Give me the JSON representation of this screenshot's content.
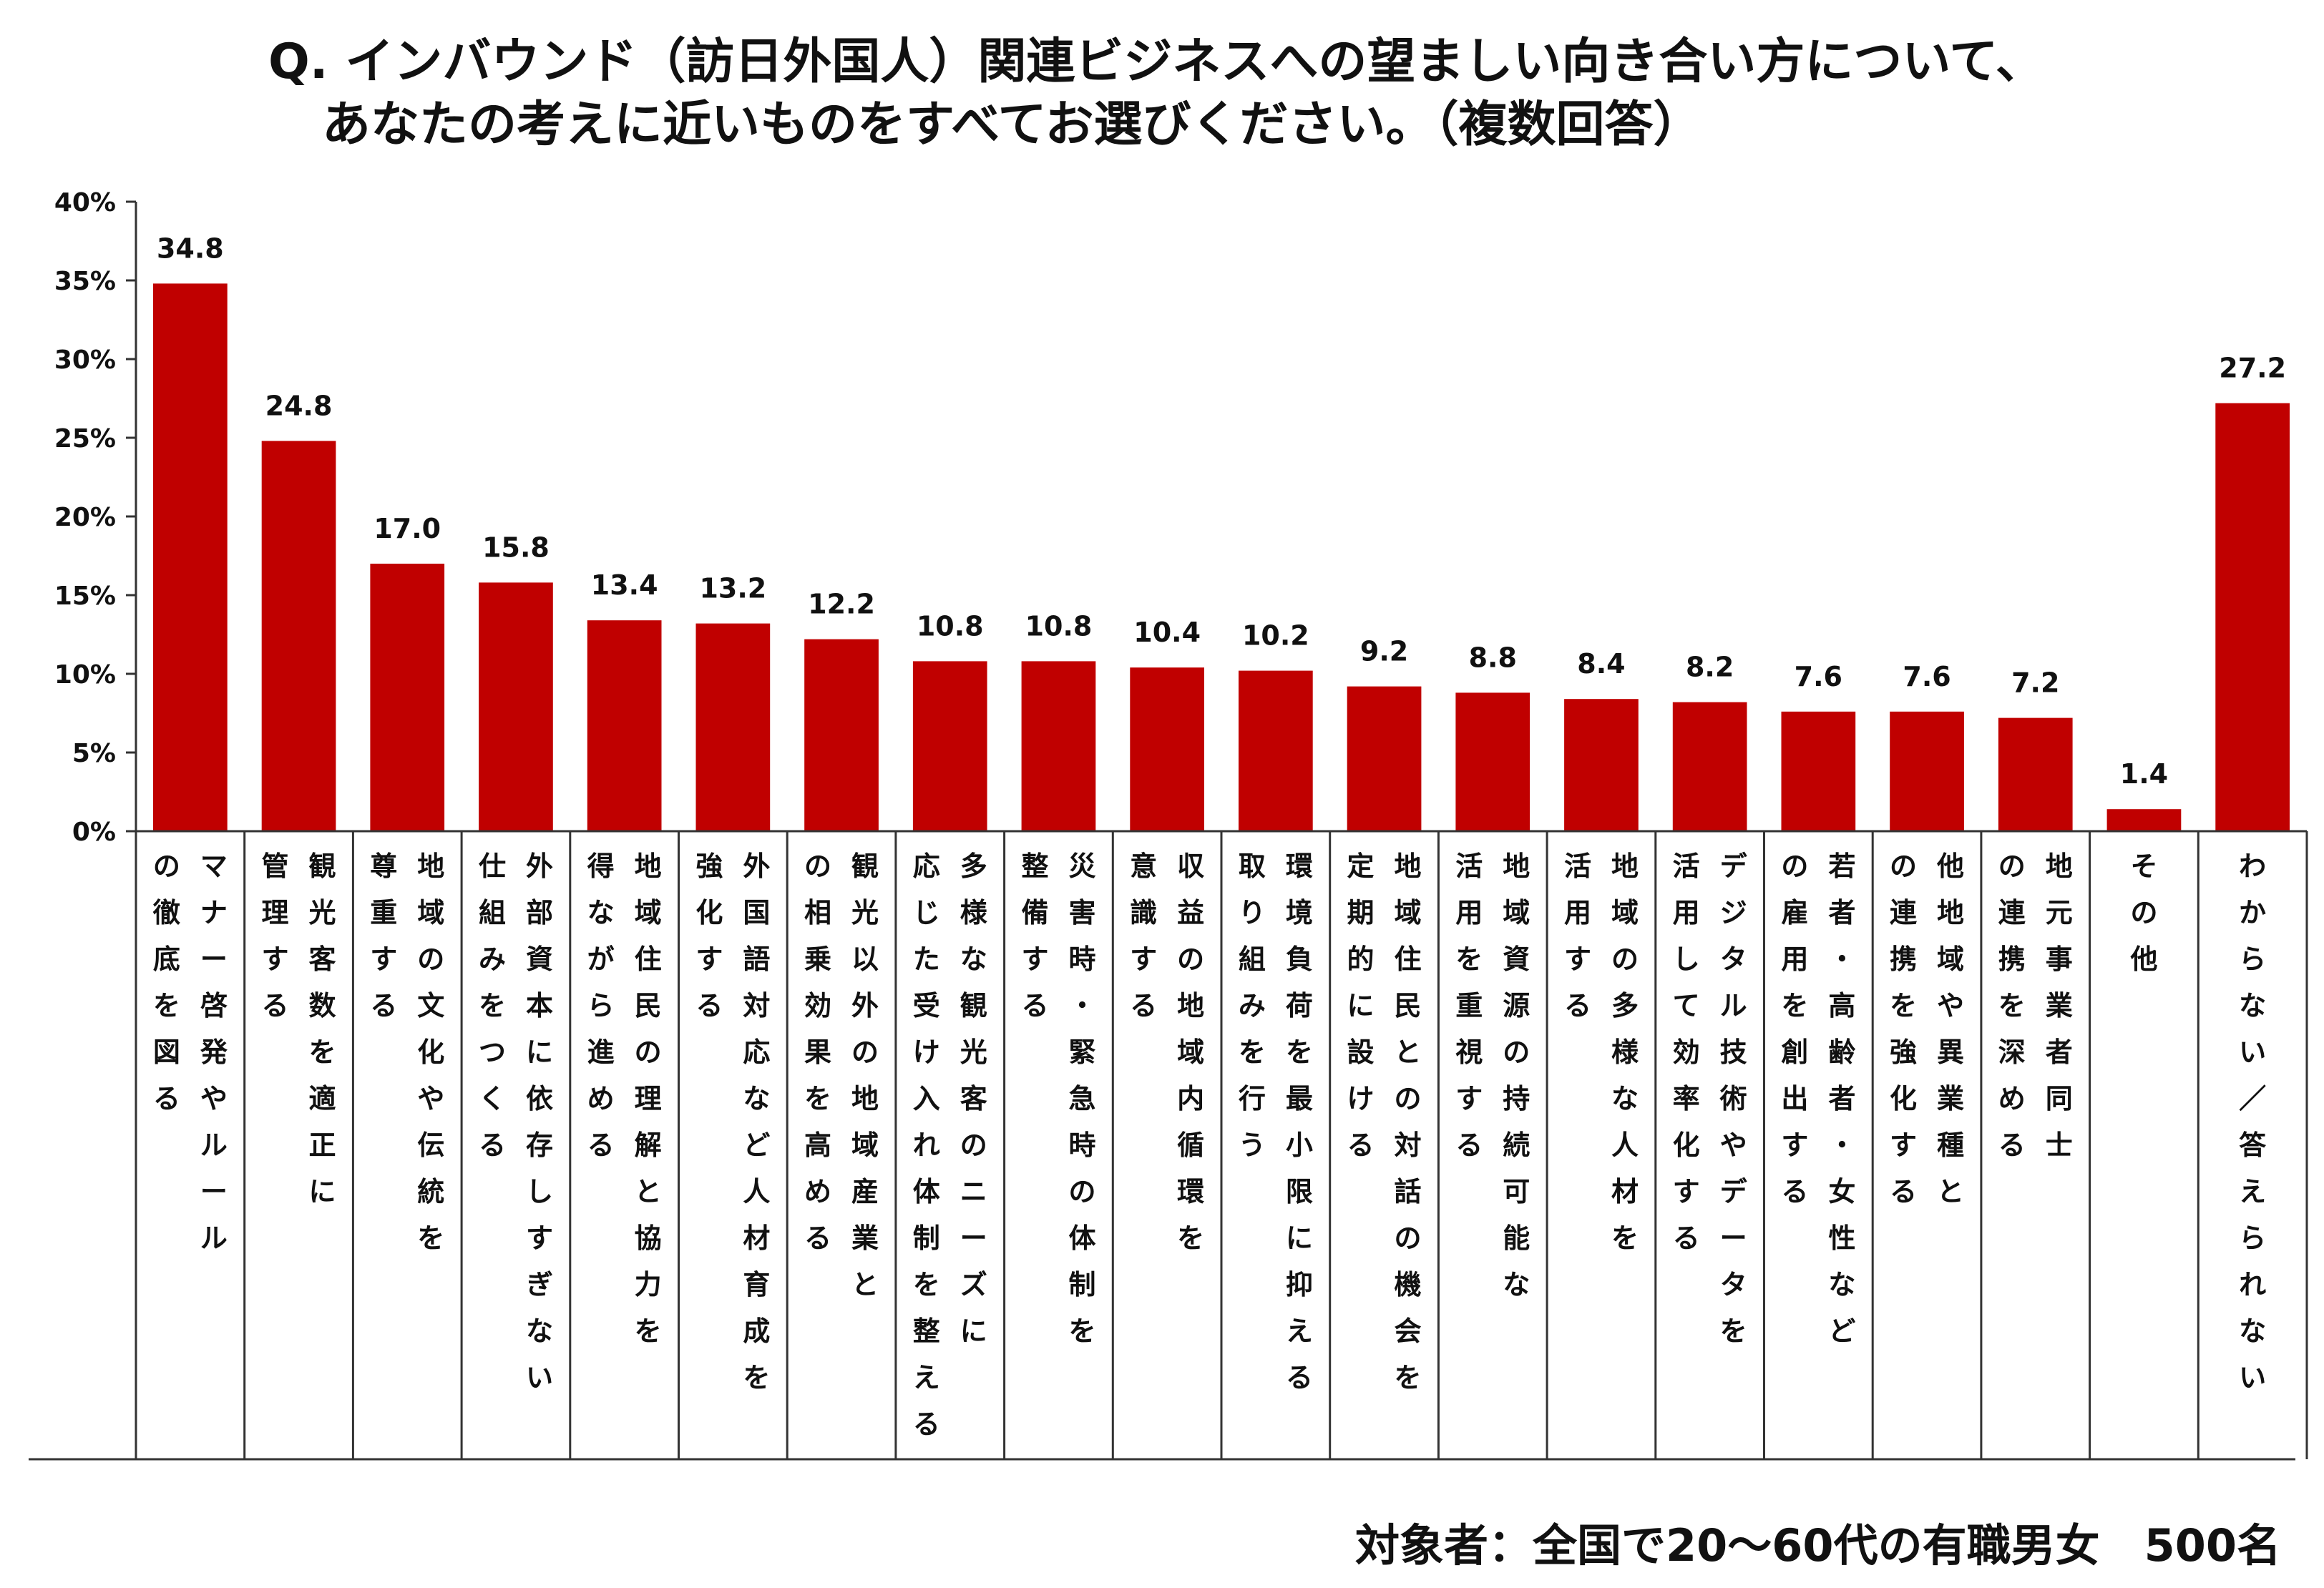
{
  "title": {
    "line1": "Q. インバウンド（訪日外国人）関連ビジネスへの望ましい向き合い方について、",
    "line2": "あなたの考えに近いものをすべてお選びください。（複数回答）"
  },
  "footnote": "対象者：全国で20～60代の有職男女　500名",
  "colors": {
    "bar": "#c00000",
    "axis": "#333333",
    "text": "#111111"
  },
  "chart_data": {
    "type": "bar",
    "yunit": "%",
    "ylim": [
      0,
      40
    ],
    "yticks": [
      "0%",
      "5%",
      "10%",
      "15%",
      "20%",
      "25%",
      "30%",
      "35%",
      "40%"
    ],
    "grid": false,
    "categories": [
      "マナー啓発やルールの徹底を図る",
      "観光客数を適正に管理する",
      "地域の文化や伝統を尊重する",
      "外部資本に依存しすぎない仕組みをつくる",
      "地域住民の理解と協力を得ながら進める",
      "外国語対応など人材育成を強化する",
      "観光以外の地域産業との相乗効果を高める",
      "多様な観光客のニーズに応じた受け入れ体制を整える",
      "災害時・緊急時の体制を整備する",
      "収益の地域内循環を意識する",
      "環境負荷を最小限に抑える取り組みを行う",
      "地域住民との対話の機会を定期的に設ける",
      "地域資源の持続可能な活用を重視する",
      "地域の多様な人材を活用する",
      "デジタル技術やデータを活用して効率化する",
      "若者・高齢者・女性などの雇用を創出する",
      "他地域や異業種との連携を強化する",
      "地元事業者同士の連携を深める",
      "その他",
      "わからない／答えられない"
    ],
    "label_columns": [
      [
        "マナー啓発やルール",
        "の徹底を図る"
      ],
      [
        "観光客数を適正に",
        "管理する"
      ],
      [
        "地域の文化や伝統を",
        "尊重する"
      ],
      [
        "外部資本に依存しすぎない",
        "仕組みをつくる"
      ],
      [
        "地域住民の理解と協力を",
        "得ながら進める"
      ],
      [
        "外国語対応など人材育成を",
        "強化する"
      ],
      [
        "観光以外の地域産業と",
        "の相乗効果を高める"
      ],
      [
        "多様な観光客のニーズに",
        "応じた受け入れ体制を整える"
      ],
      [
        "災害時・緊急時の体制を",
        "整備する"
      ],
      [
        "収益の地域内循環を",
        "意識する"
      ],
      [
        "環境負荷を最小限に抑える",
        "取り組みを行う"
      ],
      [
        "地域住民との対話の機会を",
        "定期的に設ける"
      ],
      [
        "地域資源の持続可能な",
        "活用を重視する"
      ],
      [
        "地域の多様な人材を",
        "活用する"
      ],
      [
        "デジタル技術やデータを",
        "活用して効率化する"
      ],
      [
        "若者・高齢者・女性など",
        "の雇用を創出する"
      ],
      [
        "他地域や異業種と",
        "の連携を強化する"
      ],
      [
        "地元事業者同士",
        "の連携を深める"
      ],
      [
        "その他"
      ],
      [
        "わからない／答えられない"
      ]
    ],
    "values": [
      34.8,
      24.8,
      17.0,
      15.8,
      13.4,
      13.2,
      12.2,
      10.8,
      10.8,
      10.4,
      10.2,
      9.2,
      8.8,
      8.4,
      8.2,
      7.6,
      7.6,
      7.2,
      1.4,
      27.2
    ],
    "value_labels": [
      "34.8",
      "24.8",
      "17.0",
      "15.8",
      "13.4",
      "13.2",
      "12.2",
      "10.8",
      "10.8",
      "10.4",
      "10.2",
      "9.2",
      "8.8",
      "8.4",
      "8.2",
      "7.6",
      "7.6",
      "7.2",
      "1.4",
      "27.2"
    ]
  }
}
